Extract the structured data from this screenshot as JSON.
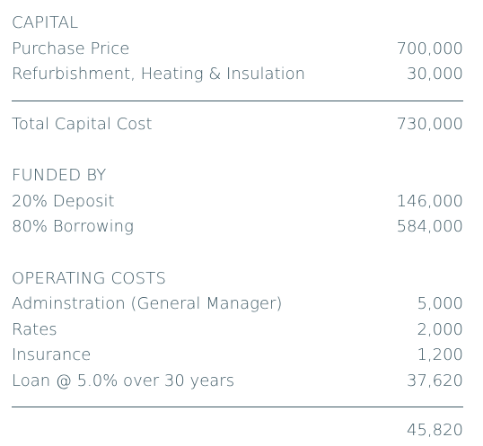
{
  "capital": {
    "heading": "CAPITAL",
    "items": [
      {
        "label": "Purchase Price",
        "value": "700,000"
      },
      {
        "label": "Refurbishment, Heating & Insulation",
        "value": "30,000"
      }
    ],
    "total": {
      "label": "Total Capital Cost",
      "value": "730,000"
    }
  },
  "funded_by": {
    "heading": "FUNDED BY",
    "items": [
      {
        "label": "20% Deposit",
        "value": "146,000"
      },
      {
        "label": "80% Borrowing",
        "value": "584,000"
      }
    ]
  },
  "operating_costs": {
    "heading": "OPERATING COSTS",
    "items": [
      {
        "label": "Adminstration (General Manager)",
        "value": "5,000"
      },
      {
        "label": "Rates",
        "value": "2,000"
      },
      {
        "label": "Insurance",
        "value": "1,200"
      },
      {
        "label": "Loan @ 5.0% over 30 years",
        "value": "37,620"
      }
    ],
    "total": {
      "label": "",
      "value": "45,820"
    }
  }
}
